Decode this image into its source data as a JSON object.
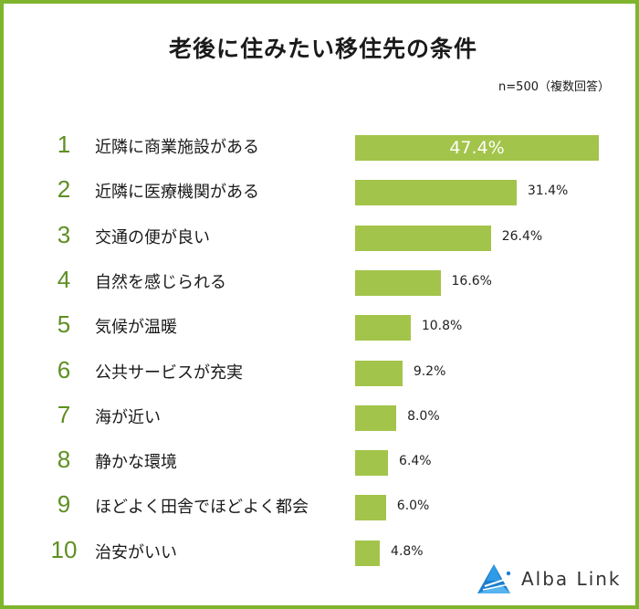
{
  "chart_data": {
    "type": "bar",
    "orientation": "horizontal",
    "title": "老後に住みたい移住先の条件",
    "subtitle": "n=500（複数回答）",
    "categories": [
      "近隣に商業施設がある",
      "近隣に医療機関がある",
      "交通の便が良い",
      "自然を感じられる",
      "気候が温暖",
      "公共サービスが充実",
      "海が近い",
      "静かな環境",
      "ほどよく田舎でほどよく都会",
      "治安がいい"
    ],
    "ranks": [
      "1",
      "2",
      "3",
      "4",
      "5",
      "6",
      "7",
      "8",
      "9",
      "10"
    ],
    "values": [
      47.4,
      31.4,
      26.4,
      16.6,
      10.8,
      9.2,
      8.0,
      6.4,
      6.0,
      4.8
    ],
    "value_labels": [
      "47.4%",
      "31.4%",
      "26.4%",
      "16.6%",
      "10.8%",
      "9.2%",
      "8.0%",
      "6.4%",
      "6.0%",
      "4.8%"
    ],
    "unit": "%",
    "xlabel": "",
    "ylabel": "",
    "grid": false,
    "legend": "none",
    "bar_color": "#a3c44a",
    "rank_color": "#5e8f22"
  },
  "header": {
    "title": "老後に住みたい移住先の条件",
    "note": "n=500（複数回答）"
  },
  "rows": [
    {
      "rank": "1",
      "label": "近隣に商業施設がある",
      "value": "47.4%",
      "pct": 47.4
    },
    {
      "rank": "2",
      "label": "近隣に医療機関がある",
      "value": "31.4%",
      "pct": 31.4
    },
    {
      "rank": "3",
      "label": "交通の便が良い",
      "value": "26.4%",
      "pct": 26.4
    },
    {
      "rank": "4",
      "label": "自然を感じられる",
      "value": "16.6%",
      "pct": 16.6
    },
    {
      "rank": "5",
      "label": "気候が温暖",
      "value": "10.8%",
      "pct": 10.8
    },
    {
      "rank": "6",
      "label": "公共サービスが充実",
      "value": "9.2%",
      "pct": 9.2
    },
    {
      "rank": "7",
      "label": "海が近い",
      "value": "8.0%",
      "pct": 8.0
    },
    {
      "rank": "8",
      "label": "静かな環境",
      "value": "6.4%",
      "pct": 6.4
    },
    {
      "rank": "9",
      "label": "ほどよく田舎でほどよく都会",
      "value": "6.0%",
      "pct": 6.0
    },
    {
      "rank": "10",
      "label": "治安がいい",
      "value": "4.8%",
      "pct": 4.8
    }
  ],
  "logo": {
    "text": "Alba Link",
    "icon": "triangle-logo-icon"
  },
  "colors": {
    "border": "#7fb52c",
    "bar": "#a3c44a",
    "rank": "#5e8f22",
    "logo_blue": "#1a7fd0"
  }
}
